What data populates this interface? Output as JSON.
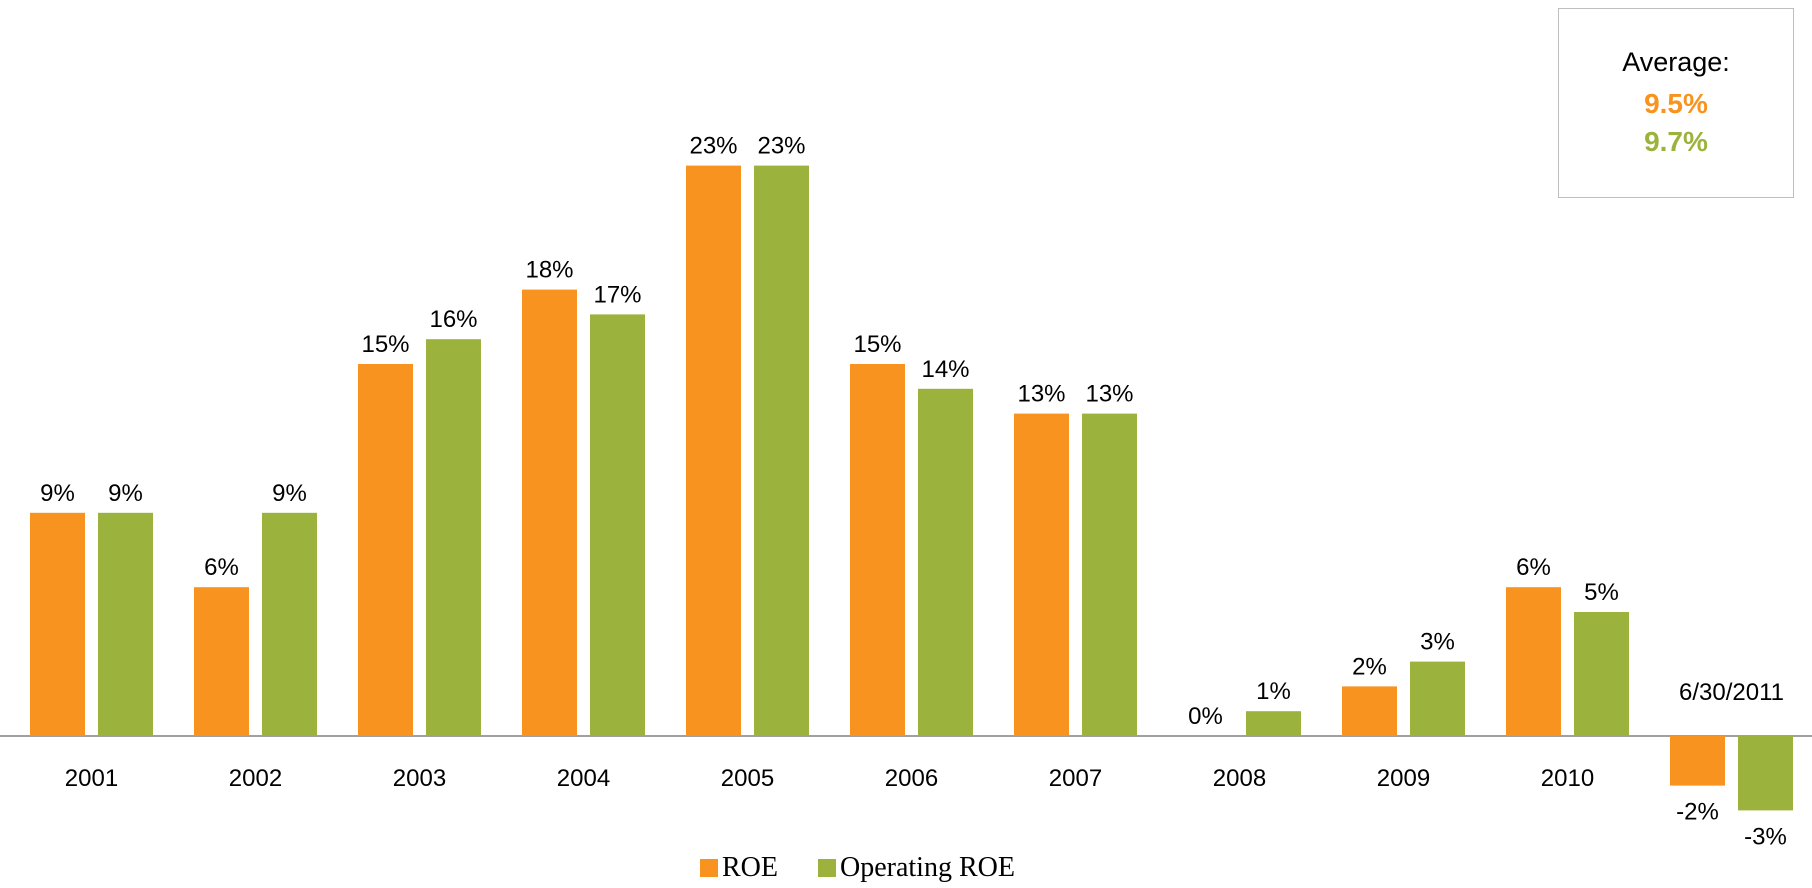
{
  "chart_data": {
    "type": "bar",
    "categories": [
      "2001",
      "2002",
      "2003",
      "2004",
      "2005",
      "2006",
      "2007",
      "2008",
      "2009",
      "2010",
      "6/30/2011"
    ],
    "series": [
      {
        "name": "ROE",
        "color": "#F7931E",
        "values": [
          9,
          6,
          15,
          18,
          23,
          15,
          13,
          0,
          2,
          6,
          -2
        ],
        "labels": [
          "9%",
          "6%",
          "15%",
          "18%",
          "23%",
          "15%",
          "13%",
          "0%",
          "2%",
          "6%",
          "-2%"
        ]
      },
      {
        "name": "Operating ROE",
        "color": "#9BB33C",
        "values": [
          9,
          9,
          16,
          17,
          23,
          14,
          13,
          1,
          3,
          5,
          -3
        ],
        "labels": [
          "9%",
          "9%",
          "16%",
          "17%",
          "23%",
          "14%",
          "13%",
          "1%",
          "3%",
          "5%",
          "-3%"
        ]
      }
    ],
    "legend_position": "bottom-center",
    "grid": false
  },
  "average_box": {
    "title": "Average:",
    "roe_value": "9.5%",
    "operating_value": "9.7%"
  },
  "legend": {
    "roe_label": "ROE",
    "operating_label": "Operating ROE"
  }
}
